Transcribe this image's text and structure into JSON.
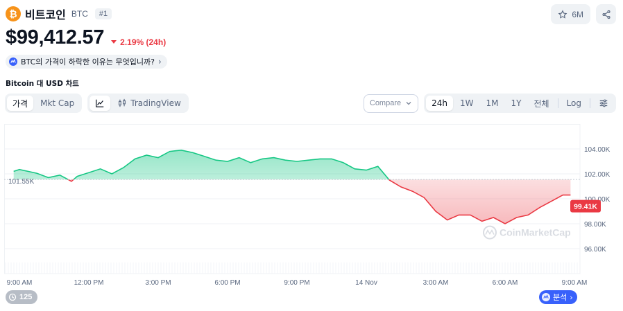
{
  "header": {
    "coin_logo_glyph": "₿",
    "coin_name": "비트코인",
    "symbol": "BTC",
    "rank": "#1",
    "watch_count": "6M"
  },
  "price": {
    "value": "$99,412.57",
    "change": "2.19% (24h)",
    "direction": "down"
  },
  "ai_prompt": "BTC의 가격이 하락한 이유는 무엇입니까?",
  "chart_title": "Bitcoin 대 USD 차트",
  "toolbar": {
    "view_tabs": [
      "가격",
      "Mkt Cap"
    ],
    "active_view": "가격",
    "tradingview_label": "TradingView",
    "compare_label": "Compare",
    "ranges": [
      "24h",
      "1W",
      "1M",
      "1Y",
      "전체"
    ],
    "active_range": "24h",
    "log_label": "Log"
  },
  "chart_data": {
    "type": "area",
    "x": [
      "2024-11-13 08:45",
      "2024-11-13 09:00",
      "2024-11-13 09:45",
      "2024-11-13 10:15",
      "2024-11-13 10:45",
      "2024-11-13 11:15",
      "2024-11-13 11:30",
      "2024-11-13 12:00",
      "2024-11-13 12:30",
      "2024-11-13 13:00",
      "2024-11-13 13:30",
      "2024-11-13 14:00",
      "2024-11-13 14:30",
      "2024-11-13 15:00",
      "2024-11-13 15:30",
      "2024-11-13 16:00",
      "2024-11-13 16:30",
      "2024-11-13 17:00",
      "2024-11-13 17:30",
      "2024-11-13 18:00",
      "2024-11-13 18:30",
      "2024-11-13 19:00",
      "2024-11-13 19:30",
      "2024-11-13 20:00",
      "2024-11-13 20:30",
      "2024-11-13 21:00",
      "2024-11-13 21:30",
      "2024-11-13 22:00",
      "2024-11-13 22:30",
      "2024-11-13 23:00",
      "2024-11-13 23:30",
      "2024-11-14 00:00",
      "2024-11-14 00:30",
      "2024-11-14 01:00",
      "2024-11-14 01:30",
      "2024-11-14 02:00",
      "2024-11-14 02:30",
      "2024-11-14 03:00",
      "2024-11-14 03:30",
      "2024-11-14 04:00",
      "2024-11-14 04:30",
      "2024-11-14 05:00",
      "2024-11-14 05:30",
      "2024-11-14 06:00",
      "2024-11-14 06:30",
      "2024-11-14 07:00",
      "2024-11-14 07:30",
      "2024-11-14 08:00",
      "2024-11-14 08:30",
      "2024-11-14 08:50"
    ],
    "values": [
      102200,
      102350,
      102050,
      101700,
      101900,
      101400,
      101800,
      102100,
      102400,
      102000,
      102500,
      103200,
      103500,
      103300,
      103800,
      103900,
      103700,
      103400,
      103100,
      103000,
      103300,
      102900,
      103200,
      103300,
      103100,
      103000,
      103100,
      103200,
      103200,
      102900,
      102400,
      102300,
      102600,
      101500,
      100950,
      100600,
      100100,
      99000,
      98300,
      98700,
      98700,
      98200,
      98500,
      98000,
      98500,
      98700,
      99300,
      99800,
      100300,
      100300
    ],
    "baseline": 101550,
    "baseline_label": "101.55K",
    "current_label": "99.41K",
    "y_ticks": [
      "96.00K",
      "98.00K",
      "100.00K",
      "102.00K",
      "104.00K"
    ],
    "y_tick_values": [
      96000,
      98000,
      100000,
      102000,
      104000
    ],
    "ylim": [
      94000,
      106000
    ],
    "x_tick_labels": [
      "9:00 AM",
      "12:00 PM",
      "3:00 PM",
      "6:00 PM",
      "9:00 PM",
      "14 Nov",
      "3:00 AM",
      "6:00 AM",
      "9:00 AM"
    ],
    "x_tick_times": [
      "2024-11-13 09:00",
      "2024-11-13 12:00",
      "2024-11-13 15:00",
      "2024-11-13 18:00",
      "2024-11-13 21:00",
      "2024-11-14 00:00",
      "2024-11-14 03:00",
      "2024-11-14 06:00",
      "2024-11-14 09:00"
    ],
    "colors": {
      "up": "#16c784",
      "down": "#ea3943",
      "grid": "#eff2f5"
    },
    "watermark": "CoinMarketCap"
  },
  "footer": {
    "history_count": "125",
    "analysis_label": "분석"
  }
}
